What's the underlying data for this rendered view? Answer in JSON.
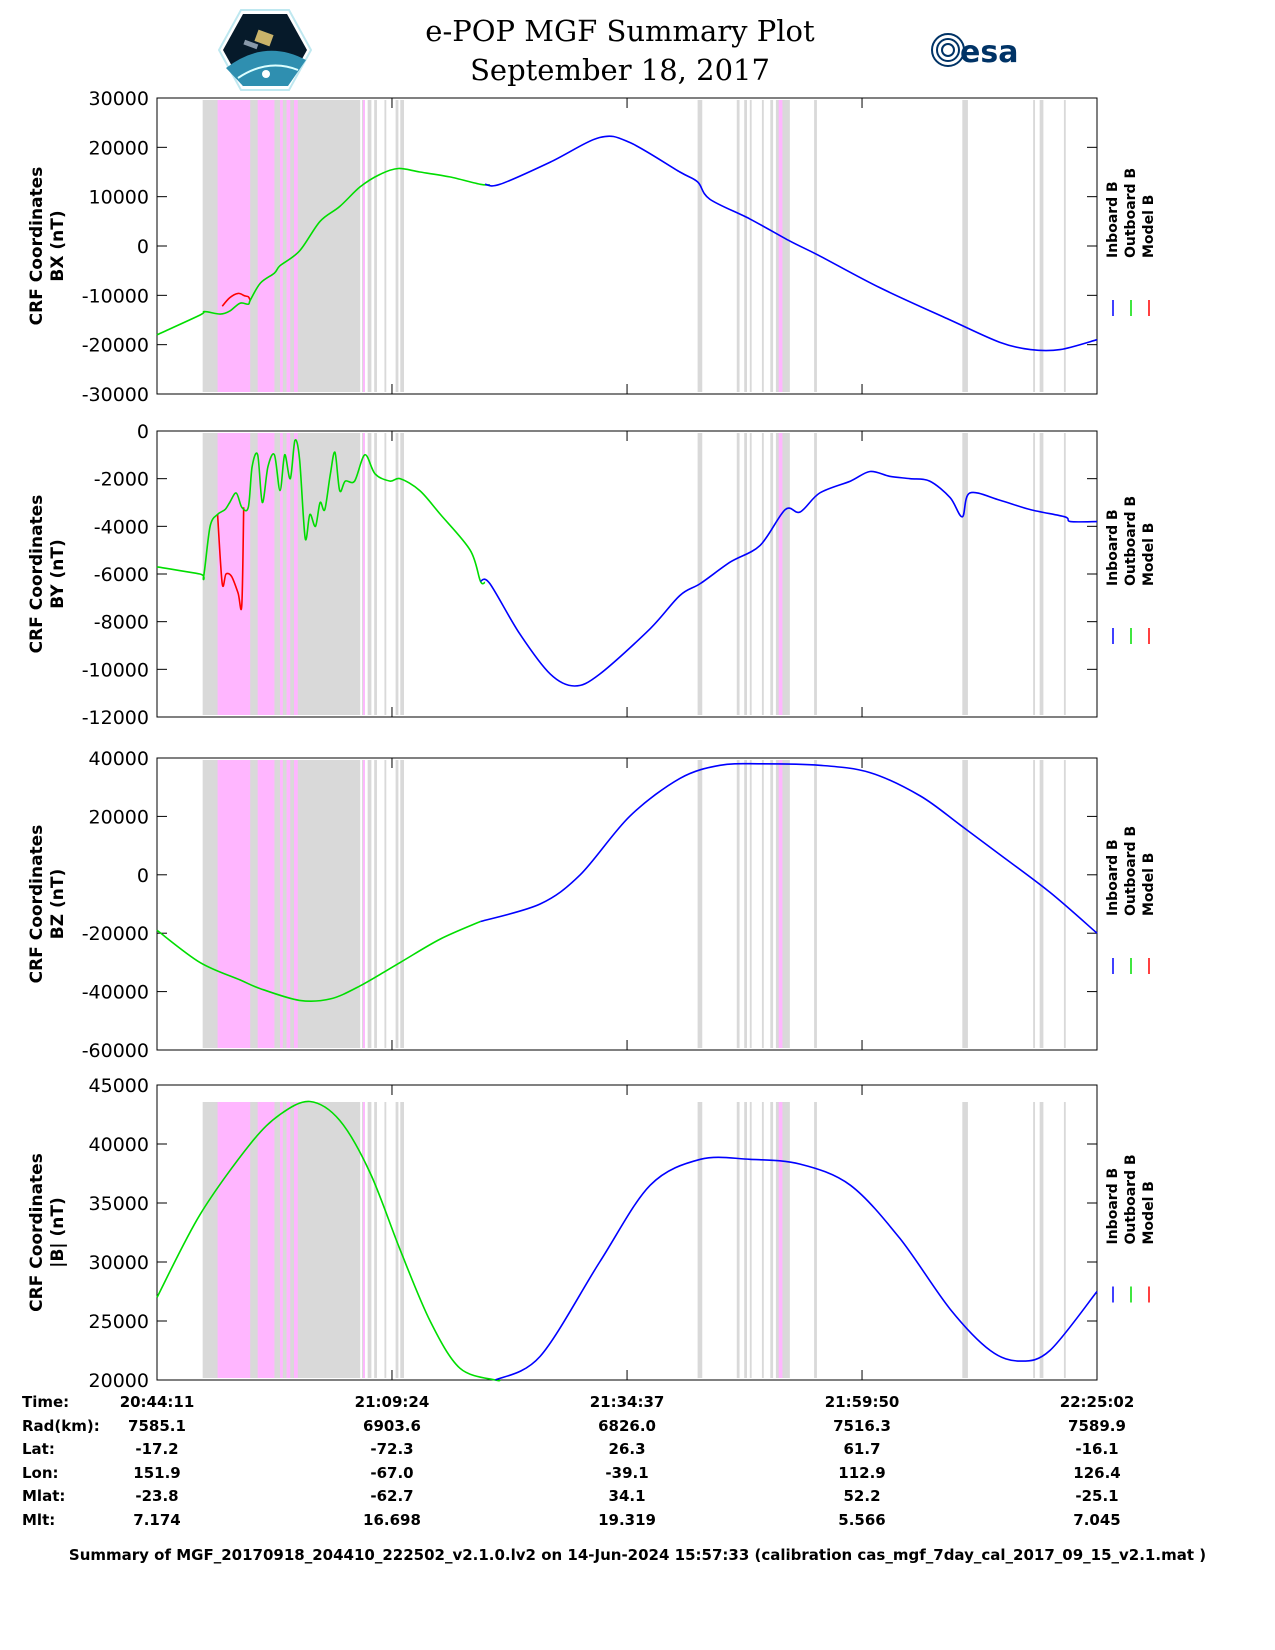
{
  "header": {
    "title": "e-POP MGF Summary Plot",
    "date": "September 18, 2017",
    "left_logo": "CASSIOPE",
    "right_logo": "esa"
  },
  "colors": {
    "inboard": "#0000ff",
    "outboard": "#00dd00",
    "model": "#ff0000",
    "band_grey": "#d9d9d9",
    "band_pink": "#ffb6ff"
  },
  "legend": [
    {
      "label": "Inboard B",
      "color": "#0000ff"
    },
    {
      "label": "Outboard B",
      "color": "#00dd00"
    },
    {
      "label": "Model B",
      "color": "#ff0000"
    }
  ],
  "x_axis": {
    "unit": "minutes since 20:44:11",
    "range": [
      0,
      100.85
    ],
    "tick_positions": [
      0,
      25.21,
      50.43,
      75.64,
      100.85
    ]
  },
  "bands": {
    "grey": [
      [
        4.9,
        21.8
      ],
      [
        22.0,
        22.3
      ],
      [
        22.6,
        23.0
      ],
      [
        23.3,
        23.6
      ],
      [
        24.4,
        24.6
      ],
      [
        25.6,
        25.9
      ],
      [
        26.1,
        26.5
      ],
      [
        58.0,
        58.5
      ],
      [
        62.2,
        62.5
      ],
      [
        63.0,
        63.3
      ],
      [
        63.6,
        63.8
      ],
      [
        64.9,
        65.1
      ],
      [
        65.8,
        66.1
      ],
      [
        66.4,
        67.9
      ],
      [
        70.5,
        70.8
      ],
      [
        86.4,
        87.0
      ],
      [
        94.0,
        94.2
      ],
      [
        94.7,
        95.1
      ],
      [
        97.3,
        97.5
      ]
    ],
    "pink": [
      [
        6.5,
        10.0
      ],
      [
        10.8,
        12.6
      ],
      [
        13.2,
        13.5
      ],
      [
        13.9,
        14.3
      ],
      [
        14.7,
        15.1
      ],
      [
        22.1,
        22.3
      ],
      [
        66.7,
        67.1
      ]
    ]
  },
  "chart_data": [
    {
      "type": "line",
      "ylabel": [
        "CRF Coordinates",
        "BX (nT)"
      ],
      "ylim": [
        -30000,
        30000
      ],
      "yticks": [
        30000,
        20000,
        10000,
        0,
        -10000,
        -20000,
        -30000
      ],
      "series": [
        {
          "name": "Outboard B",
          "color": "#00dd00",
          "points": [
            [
              0,
              -18000
            ],
            [
              4.6,
              -14000
            ],
            [
              5.1,
              -13300
            ],
            [
              6.8,
              -13800
            ],
            [
              7.8,
              -13200
            ],
            [
              8.9,
              -11600
            ],
            [
              9.8,
              -11800
            ],
            [
              10.0,
              -11000
            ],
            [
              11.1,
              -7500
            ],
            [
              12.6,
              -5500
            ],
            [
              13.2,
              -4000
            ],
            [
              15.3,
              -1000
            ],
            [
              17.5,
              5000
            ],
            [
              19.6,
              8000
            ],
            [
              21.8,
              12000
            ],
            [
              23.9,
              14500
            ],
            [
              25.9,
              15700
            ],
            [
              28.2,
              15000
            ],
            [
              31.4,
              14000
            ],
            [
              34.7,
              12500
            ],
            [
              35.7,
              12400
            ]
          ]
        },
        {
          "name": "Inboard B",
          "color": "#0000ff",
          "points": [
            [
              35.2,
              12500
            ],
            [
              36.8,
              12500
            ],
            [
              42.2,
              17000
            ],
            [
              47.5,
              22000
            ],
            [
              50.7,
              21000
            ],
            [
              56.1,
              15000
            ],
            [
              58.0,
              13000
            ],
            [
              59.3,
              9500
            ],
            [
              63.6,
              5500
            ],
            [
              67.9,
              1000
            ],
            [
              71.1,
              -2000
            ],
            [
              77.6,
              -8500
            ],
            [
              85.1,
              -15000
            ],
            [
              90.4,
              -19500
            ],
            [
              93.7,
              -21000
            ],
            [
              96.9,
              -21000
            ],
            [
              100.85,
              -19000
            ]
          ]
        },
        {
          "name": "Model B",
          "color": "#ff0000",
          "points": [
            [
              7.0,
              -12200
            ],
            [
              7.8,
              -10500
            ],
            [
              8.7,
              -9600
            ],
            [
              9.4,
              -10100
            ],
            [
              9.8,
              -10300
            ],
            [
              10.0,
              -11000
            ]
          ]
        }
      ]
    },
    {
      "type": "line",
      "ylabel": [
        "CRF Coordinates",
        "BY (nT)"
      ],
      "ylim": [
        -12000,
        0
      ],
      "yticks": [
        0,
        -2000,
        -4000,
        -6000,
        -8000,
        -10000,
        -12000
      ],
      "series": [
        {
          "name": "Outboard B",
          "color": "#00dd00",
          "points": [
            [
              0,
              -5700
            ],
            [
              4.6,
              -6000
            ],
            [
              5.0,
              -6100
            ],
            [
              5.7,
              -4000
            ],
            [
              6.5,
              -3500
            ],
            [
              7.3,
              -3300
            ],
            [
              7.8,
              -3000
            ],
            [
              8.5,
              -2600
            ],
            [
              9.1,
              -3200
            ],
            [
              9.8,
              -3200
            ],
            [
              10.2,
              -1500
            ],
            [
              10.8,
              -1000
            ],
            [
              11.3,
              -3000
            ],
            [
              11.9,
              -1500
            ],
            [
              12.6,
              -1000
            ],
            [
              13.2,
              -2500
            ],
            [
              13.7,
              -1000
            ],
            [
              14.3,
              -2000
            ],
            [
              14.8,
              -400
            ],
            [
              15.3,
              -1200
            ],
            [
              15.9,
              -4500
            ],
            [
              16.4,
              -3500
            ],
            [
              17.0,
              -4000
            ],
            [
              17.5,
              -3000
            ],
            [
              18.0,
              -3300
            ],
            [
              18.6,
              -1800
            ],
            [
              19.1,
              -900
            ],
            [
              19.6,
              -2500
            ],
            [
              20.2,
              -2100
            ],
            [
              21.2,
              -2100
            ],
            [
              22.3,
              -1000
            ],
            [
              23.4,
              -1800
            ],
            [
              25.0,
              -2100
            ],
            [
              26.1,
              -2000
            ],
            [
              28.2,
              -2500
            ],
            [
              30.4,
              -3500
            ],
            [
              33.6,
              -5000
            ],
            [
              34.7,
              -6300
            ],
            [
              35.2,
              -6350
            ]
          ]
        },
        {
          "name": "Inboard B",
          "color": "#0000ff",
          "points": [
            [
              34.7,
              -6300
            ],
            [
              35.7,
              -6400
            ],
            [
              38.9,
              -8500
            ],
            [
              42.2,
              -10200
            ],
            [
              44.8,
              -10700
            ],
            [
              47.5,
              -10200
            ],
            [
              52.9,
              -8300
            ],
            [
              56.1,
              -6900
            ],
            [
              58.3,
              -6400
            ],
            [
              61.5,
              -5500
            ],
            [
              64.7,
              -4800
            ],
            [
              67.4,
              -3300
            ],
            [
              69.0,
              -3400
            ],
            [
              71.1,
              -2600
            ],
            [
              74.4,
              -2100
            ],
            [
              76.5,
              -1700
            ],
            [
              78.6,
              -1900
            ],
            [
              80.8,
              -2000
            ],
            [
              82.9,
              -2100
            ],
            [
              85.1,
              -2800
            ],
            [
              86.4,
              -3600
            ],
            [
              87.2,
              -2600
            ],
            [
              90.4,
              -2900
            ],
            [
              93.7,
              -3300
            ],
            [
              97.4,
              -3600
            ],
            [
              98.0,
              -3800
            ],
            [
              100.85,
              -3800
            ]
          ]
        },
        {
          "name": "Model B",
          "color": "#ff0000",
          "points": [
            [
              6.5,
              -3500
            ],
            [
              7.0,
              -6400
            ],
            [
              7.4,
              -6000
            ],
            [
              8.0,
              -6100
            ],
            [
              8.7,
              -6800
            ],
            [
              9.1,
              -7300
            ],
            [
              9.3,
              -3200
            ]
          ]
        }
      ]
    },
    {
      "type": "line",
      "ylabel": [
        "CRF Coordinates",
        "BZ (nT)"
      ],
      "ylim": [
        -60000,
        40000
      ],
      "yticks": [
        40000,
        20000,
        0,
        -20000,
        -40000,
        -60000
      ],
      "series": [
        {
          "name": "Outboard B",
          "color": "#00dd00",
          "points": [
            [
              0,
              -19000
            ],
            [
              4.6,
              -30000
            ],
            [
              8.9,
              -36000
            ],
            [
              11.1,
              -39000
            ],
            [
              15.3,
              -43000
            ],
            [
              18.6,
              -42500
            ],
            [
              21.8,
              -38000
            ],
            [
              26.1,
              -30000
            ],
            [
              30.4,
              -22000
            ],
            [
              34.7,
              -16000
            ]
          ]
        },
        {
          "name": "Inboard B",
          "color": "#0000ff",
          "points": [
            [
              34.7,
              -16000
            ],
            [
              41.1,
              -10000
            ],
            [
              45.4,
              0
            ],
            [
              50.7,
              20000
            ],
            [
              56.1,
              33000
            ],
            [
              60.4,
              37500
            ],
            [
              64.7,
              38000
            ],
            [
              71.1,
              37500
            ],
            [
              76.5,
              35000
            ],
            [
              81.9,
              27000
            ],
            [
              86.2,
              17000
            ],
            [
              90.4,
              7000
            ],
            [
              95.8,
              -6000
            ],
            [
              100.85,
              -20000
            ]
          ]
        },
        {
          "name": "Model B",
          "color": "#ff0000",
          "points": []
        }
      ]
    },
    {
      "type": "line",
      "ylabel": [
        "CRF Coordinates",
        "|B| (nT)"
      ],
      "ylim": [
        20000,
        45000
      ],
      "yticks": [
        45000,
        40000,
        35000,
        30000,
        25000,
        20000
      ],
      "series": [
        {
          "name": "Outboard B",
          "color": "#00dd00",
          "points": [
            [
              0,
              27000
            ],
            [
              4.6,
              34000
            ],
            [
              10.0,
              40000
            ],
            [
              13.2,
              42500
            ],
            [
              16.4,
              43600
            ],
            [
              19.6,
              42000
            ],
            [
              22.9,
              37500
            ],
            [
              26.1,
              31000
            ],
            [
              29.3,
              25000
            ],
            [
              32.5,
              21000
            ],
            [
              36.3,
              20000
            ],
            [
              36.8,
              20050
            ]
          ]
        },
        {
          "name": "Inboard B",
          "color": "#0000ff",
          "points": [
            [
              36.3,
              20000
            ],
            [
              41.1,
              22000
            ],
            [
              47.5,
              30000
            ],
            [
              52.9,
              36500
            ],
            [
              58.3,
              38700
            ],
            [
              63.6,
              38700
            ],
            [
              69.0,
              38300
            ],
            [
              74.4,
              36500
            ],
            [
              79.7,
              32000
            ],
            [
              85.1,
              26000
            ],
            [
              89.4,
              22500
            ],
            [
              92.6,
              21600
            ],
            [
              95.8,
              22500
            ],
            [
              100.85,
              27500
            ]
          ]
        },
        {
          "name": "Model B",
          "color": "#ff0000",
          "points": []
        }
      ]
    }
  ],
  "table": {
    "labels": [
      "Time:",
      "Rad(km):",
      "Lat:",
      "Lon:",
      "Mlat:",
      "Mlt:"
    ],
    "columns": [
      [
        "20:44:11",
        "7585.1",
        "-17.2",
        "151.9",
        "-23.8",
        "7.174"
      ],
      [
        "21:09:24",
        "6903.6",
        "-72.3",
        "-67.0",
        "-62.7",
        "16.698"
      ],
      [
        "21:34:37",
        "6826.0",
        "26.3",
        "-39.1",
        "34.1",
        "19.319"
      ],
      [
        "21:59:50",
        "7516.3",
        "61.7",
        "112.9",
        "52.2",
        "5.566"
      ],
      [
        "22:25:02",
        "7589.9",
        "-16.1",
        "126.4",
        "-25.1",
        "7.045"
      ]
    ]
  },
  "footer": "Summary of MGF_20170918_204410_222502_v2.1.0.lv2 on 14-Jun-2024 15:57:33 (calibration cas_mgf_7day_cal_2017_09_15_v2.1.mat )"
}
